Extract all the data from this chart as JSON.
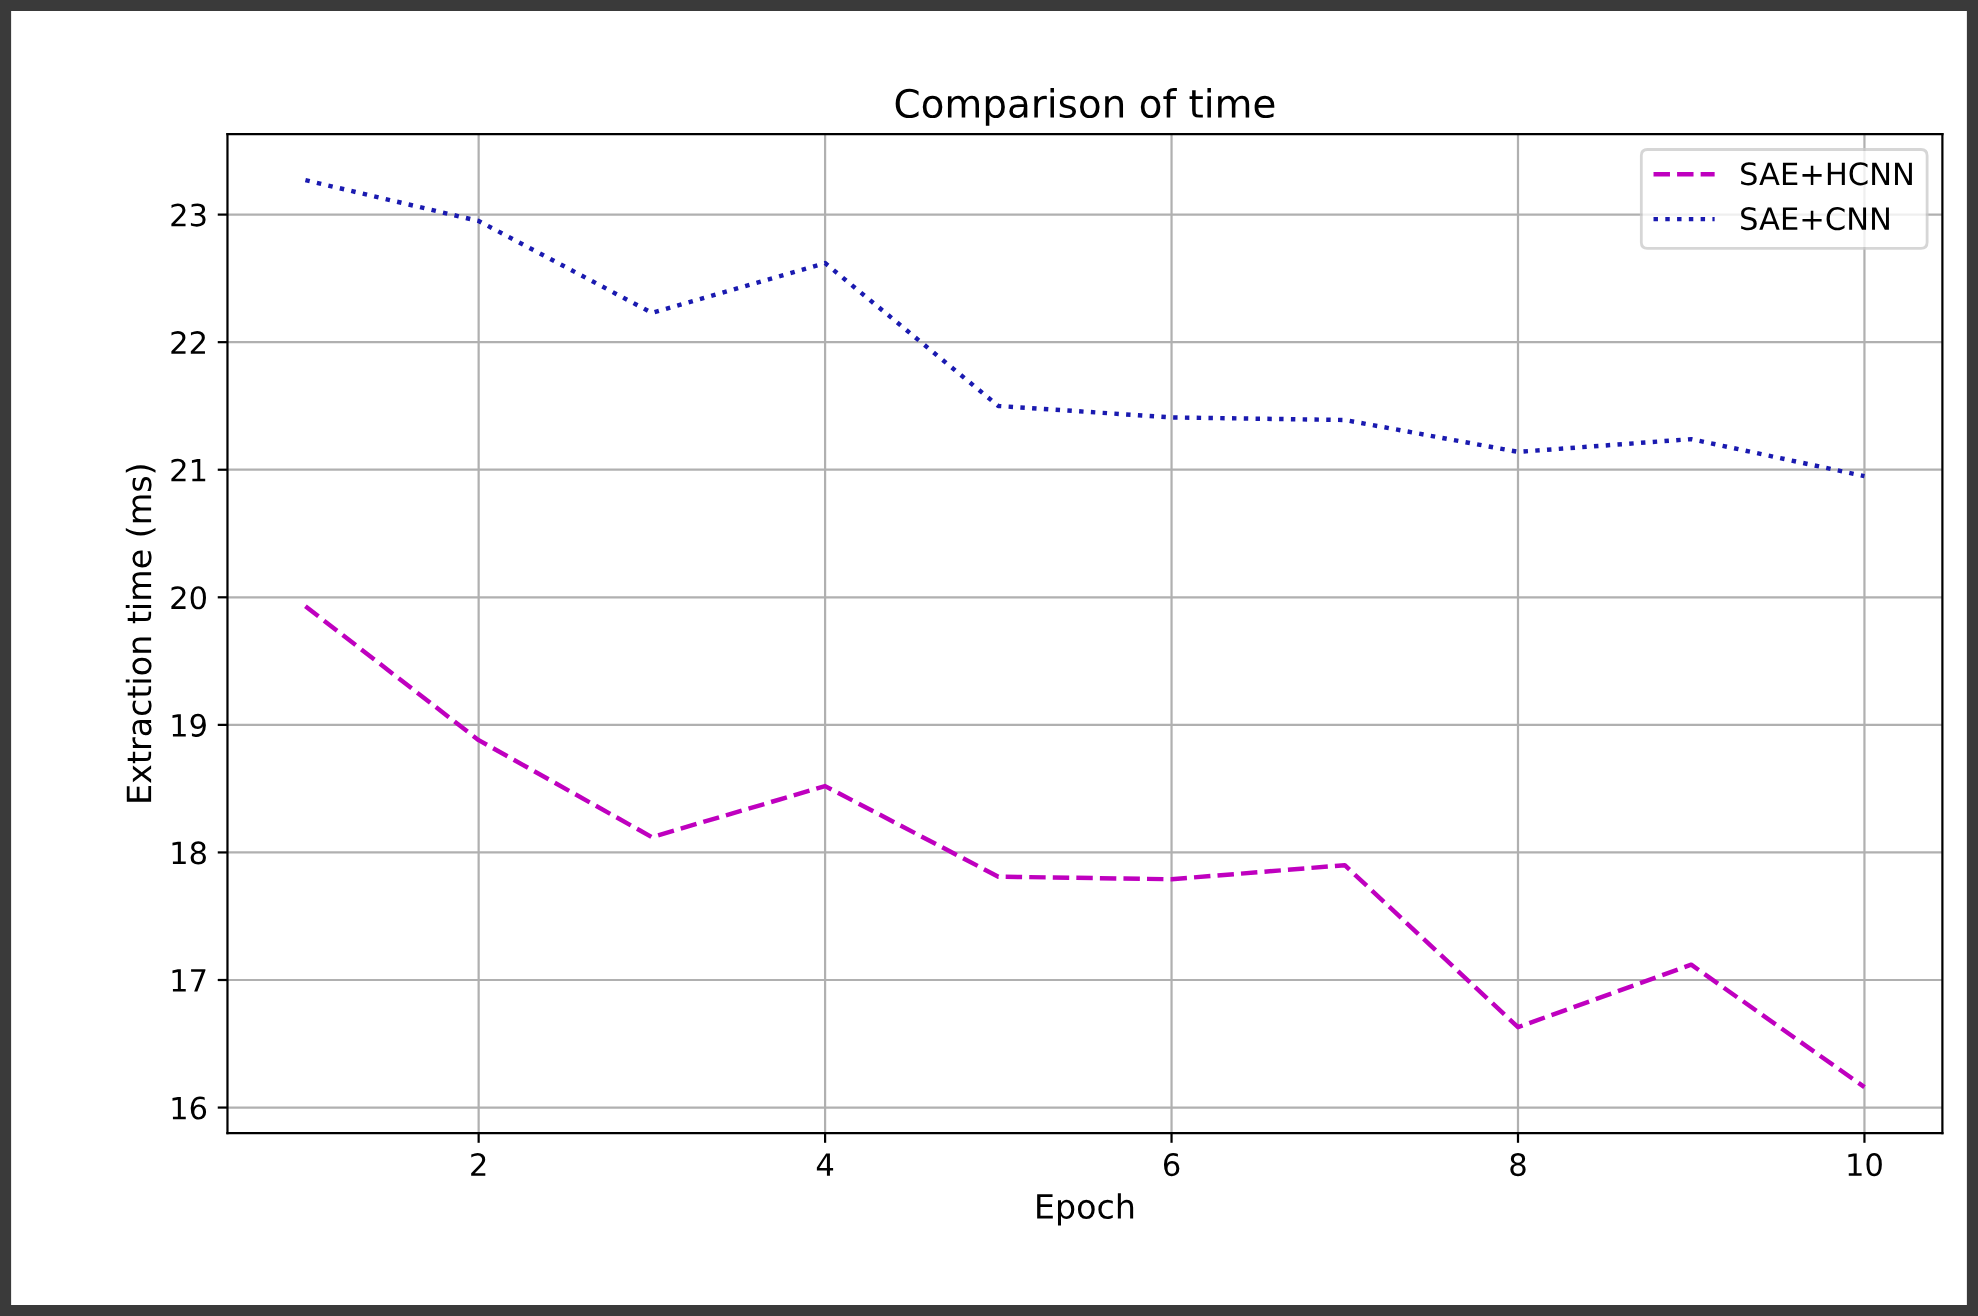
{
  "chart_data": {
    "type": "line",
    "title": "Comparison of time",
    "xlabel": "Epoch",
    "ylabel": "Extraction time (ms)",
    "x": [
      1,
      2,
      3,
      4,
      5,
      6,
      7,
      8,
      9,
      10
    ],
    "series": [
      {
        "name": "SAE+HCNN",
        "color": "#bf00bf",
        "line_style": "dashed",
        "values": [
          19.93,
          18.88,
          18.12,
          18.52,
          17.81,
          17.79,
          17.9,
          16.63,
          17.12,
          16.16
        ]
      },
      {
        "name": "SAE+CNN",
        "color": "#1a1ab0",
        "line_style": "dotted",
        "values": [
          23.27,
          22.95,
          22.23,
          22.62,
          21.5,
          21.41,
          21.39,
          21.14,
          21.24,
          20.95
        ]
      }
    ],
    "xlim": [
      0.55,
      10.45
    ],
    "ylim": [
      15.8,
      23.63
    ],
    "xticks": [
      2,
      4,
      6,
      8,
      10
    ],
    "yticks": [
      16,
      17,
      18,
      19,
      20,
      21,
      22,
      23
    ],
    "grid": true,
    "legend": "top right",
    "marker": "none"
  }
}
